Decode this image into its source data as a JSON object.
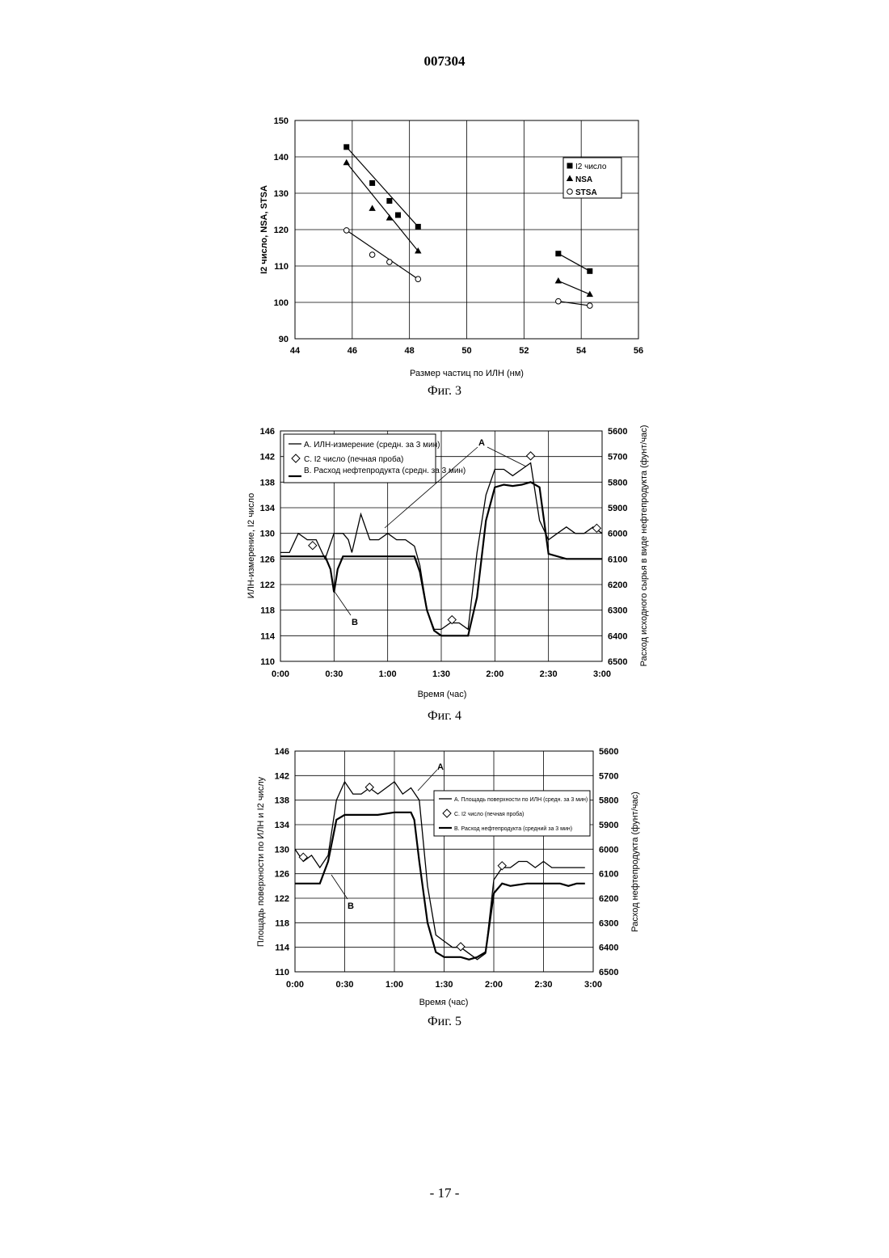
{
  "page": {
    "header": "007304",
    "footer": "- 17 -"
  },
  "chart_data": [
    {
      "type": "scatter",
      "caption": "Фиг. 3",
      "xlabel": "Размер частиц по ИЛН (нм)",
      "ylabel": "I2 число, NSA, STSA",
      "xlim": [
        44,
        56
      ],
      "ylim": [
        90,
        150
      ],
      "xticks": [
        44,
        46,
        48,
        50,
        52,
        54,
        56
      ],
      "yticks": [
        90,
        100,
        110,
        120,
        130,
        140,
        150
      ],
      "grid": true,
      "legend_position": "top-right",
      "series": [
        {
          "name": "I2 число",
          "marker": "square",
          "points": [
            [
              45.8,
              142.7
            ],
            [
              46.7,
              132.8
            ],
            [
              47.3,
              127.9
            ],
            [
              47.6,
              124.0
            ],
            [
              48.3,
              120.8
            ],
            [
              53.2,
              113.4
            ],
            [
              54.3,
              108.6
            ]
          ],
          "fits": [
            [
              [
                45.8,
                142.7
              ],
              [
                48.3,
                120.8
              ]
            ],
            [
              [
                53.2,
                113.4
              ],
              [
                54.3,
                108.6
              ]
            ]
          ]
        },
        {
          "name": "NSA",
          "marker": "triangle",
          "points": [
            [
              45.8,
              138.4
            ],
            [
              46.7,
              125.8
            ],
            [
              47.3,
              123.2
            ],
            [
              48.3,
              114.1
            ],
            [
              53.2,
              105.9
            ],
            [
              54.3,
              102.2
            ]
          ],
          "fits": [
            [
              [
                45.8,
                138.4
              ],
              [
                48.3,
                114.1
              ]
            ],
            [
              [
                53.2,
                105.9
              ],
              [
                54.3,
                102.2
              ]
            ]
          ]
        },
        {
          "name": "STSA",
          "marker": "circle",
          "points": [
            [
              45.8,
              119.8
            ],
            [
              46.7,
              113.1
            ],
            [
              47.3,
              111.1
            ],
            [
              48.3,
              106.4
            ],
            [
              53.2,
              100.3
            ],
            [
              54.3,
              99.1
            ]
          ],
          "fits": [
            [
              [
                45.8,
                119.8
              ],
              [
                48.3,
                106.4
              ]
            ],
            [
              [
                53.2,
                100.3
              ],
              [
                54.3,
                99.1
              ]
            ]
          ]
        }
      ]
    },
    {
      "type": "line",
      "caption": "Фиг. 4",
      "xlabel": "Время (час)",
      "ylabel": "ИЛН-измерение, I2 число",
      "y2label": "Расход исходного сырья в виде нефтепродукта (фунт/час)",
      "xticks": [
        "0:00",
        "0:30",
        "1:00",
        "1:30",
        "2:00",
        "2:30",
        "3:00"
      ],
      "xlim_min": [
        0,
        180
      ],
      "ylim": [
        110,
        146
      ],
      "yticks": [
        110,
        114,
        118,
        122,
        126,
        130,
        134,
        138,
        142,
        146
      ],
      "y2lim": [
        6500,
        5600
      ],
      "y2ticks": [
        5600,
        5700,
        5800,
        5900,
        6000,
        6100,
        6200,
        6300,
        6400,
        6500
      ],
      "grid": true,
      "legend_position": "top-left",
      "legend": [
        "А. ИЛН-измерение (средн. за 3 мин)",
        "С. I2 число (печная проба)",
        "В. Расход нефтепродукта (средн. за 3 мин)"
      ],
      "annotations": [
        "А",
        "В"
      ],
      "series": [
        {
          "name": "А. ИЛН-измерение (средн. за 3 мин)",
          "x": [
            0,
            5,
            10,
            15,
            20,
            25,
            30,
            35,
            38,
            40,
            45,
            50,
            55,
            60,
            65,
            70,
            75,
            78,
            82,
            86,
            90,
            95,
            100,
            105,
            110,
            115,
            120,
            125,
            130,
            135,
            140,
            145,
            150,
            155,
            160,
            165,
            170,
            175,
            180
          ],
          "y": [
            127,
            127,
            130,
            129,
            129,
            126,
            130,
            130,
            129,
            127,
            133,
            129,
            129,
            130,
            129,
            129,
            128,
            125,
            118,
            115,
            115,
            116,
            116,
            115,
            127,
            136,
            140,
            140,
            139,
            140,
            141,
            132,
            129,
            130,
            131,
            130,
            130,
            131,
            130
          ]
        },
        {
          "name": "В. Расход нефтепродукта (средн. за 3 мин)",
          "x": [
            0,
            10,
            20,
            25,
            28,
            30,
            32,
            35,
            40,
            45,
            50,
            55,
            60,
            65,
            70,
            75,
            78,
            82,
            86,
            90,
            95,
            100,
            105,
            110,
            115,
            120,
            125,
            130,
            135,
            140,
            145,
            150,
            160,
            170,
            180
          ],
          "y2": [
            6090,
            6090,
            6090,
            6090,
            6140,
            6230,
            6140,
            6090,
            6090,
            6090,
            6090,
            6090,
            6090,
            6090,
            6090,
            6090,
            6150,
            6300,
            6380,
            6400,
            6400,
            6400,
            6400,
            6250,
            5950,
            5820,
            5810,
            5815,
            5810,
            5800,
            5820,
            6080,
            6100,
            6100,
            6100
          ]
        },
        {
          "name": "С. I2 число (печная проба)",
          "marker": "diamond",
          "x": [
            18,
            96,
            140,
            177
          ],
          "y": [
            128.1,
            116.5,
            142.1,
            130.8
          ]
        }
      ]
    },
    {
      "type": "line",
      "caption": "Фиг. 5",
      "xlabel": "Время (час)",
      "ylabel": "Площадь поверхности по ИЛН и I2 числу",
      "y2label": "Расход нефтепродукта (фунт/час)",
      "xticks": [
        "0:00",
        "0:30",
        "1:00",
        "1:30",
        "2:00",
        "2:30",
        "3:00"
      ],
      "xlim_min": [
        0,
        180
      ],
      "ylim": [
        110,
        146
      ],
      "yticks": [
        110,
        114,
        118,
        122,
        126,
        130,
        134,
        138,
        142,
        146
      ],
      "y2lim": [
        6500,
        5600
      ],
      "y2ticks": [
        5600,
        5700,
        5800,
        5900,
        6000,
        6100,
        6200,
        6300,
        6400,
        6500
      ],
      "grid": true,
      "legend_position": "right",
      "legend": [
        "А. Площадь поверхности по ИЛН (средн. за 3 мин)",
        "С. I2 число (печная проба)",
        "В. Расход нефтепродукта (средний за 3 мин)"
      ],
      "annotations": [
        "А",
        "В"
      ],
      "series": [
        {
          "name": "А. Площадь поверхности по ИЛН (средн. за 3 мин)",
          "x": [
            0,
            5,
            10,
            15,
            20,
            25,
            30,
            35,
            40,
            45,
            50,
            55,
            60,
            65,
            70,
            75,
            80,
            85,
            90,
            95,
            100,
            105,
            110,
            115,
            120,
            125,
            130,
            135,
            140,
            145,
            150,
            155,
            160,
            165,
            170,
            175
          ],
          "y": [
            130,
            128,
            129,
            127,
            129,
            138,
            141,
            139,
            139,
            140,
            139,
            140,
            141,
            139,
            140,
            138,
            124,
            116,
            115,
            114,
            114,
            113,
            112,
            113,
            125,
            127,
            127,
            128,
            128,
            127,
            128,
            127,
            127,
            127,
            127,
            127
          ]
        },
        {
          "name": "В. Расход нефтепродукта (средний за 3 мин)",
          "x": [
            0,
            10,
            15,
            20,
            25,
            30,
            40,
            50,
            60,
            70,
            72,
            75,
            80,
            85,
            90,
            95,
            100,
            105,
            110,
            115,
            120,
            125,
            130,
            140,
            150,
            160,
            165,
            170,
            175
          ],
          "y2": [
            6140,
            6140,
            6140,
            6050,
            5880,
            5860,
            5860,
            5860,
            5850,
            5850,
            5880,
            6050,
            6300,
            6420,
            6440,
            6440,
            6440,
            6450,
            6440,
            6420,
            6180,
            6140,
            6150,
            6140,
            6140,
            6140,
            6150,
            6140,
            6140
          ]
        },
        {
          "name": "С. I2 число (печная проба)",
          "marker": "diamond",
          "x": [
            5,
            45,
            100,
            125
          ],
          "y": [
            128.7,
            140.1,
            114.1,
            127.3
          ]
        }
      ]
    }
  ]
}
